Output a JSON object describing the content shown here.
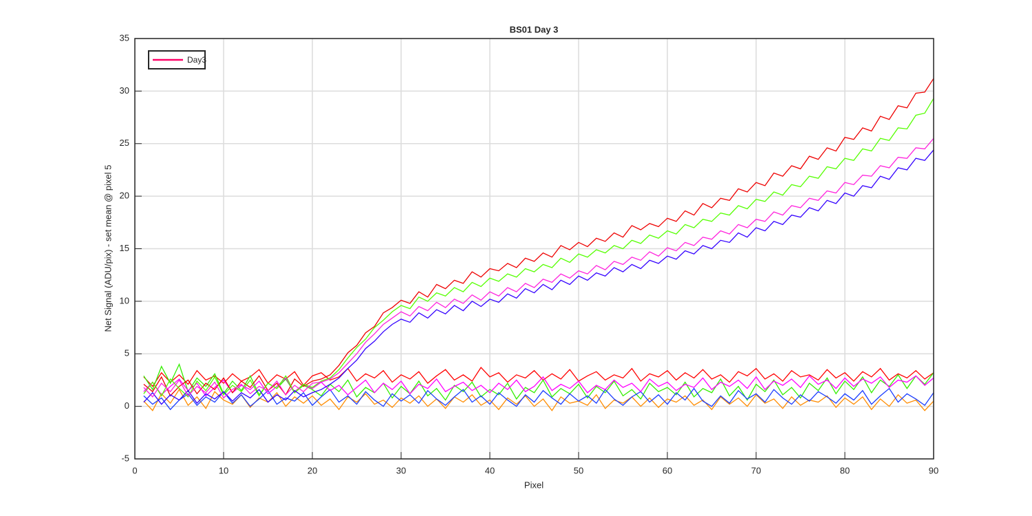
{
  "chart_data": {
    "type": "line",
    "title": "BS01 Day 3",
    "x_label": "Pixel",
    "y_label": "Net Signal (ADU/pix) - set mean @ pixel 5",
    "x": [
      1,
      2,
      3,
      4,
      5,
      6,
      7,
      8,
      9,
      10,
      11,
      12,
      13,
      14,
      15,
      16,
      17,
      18,
      19,
      20,
      21,
      22,
      23,
      24,
      25,
      26,
      27,
      28,
      29,
      30,
      31,
      32,
      33,
      34,
      35,
      36,
      37,
      38,
      39,
      40,
      41,
      42,
      43,
      44,
      45,
      46,
      47,
      48,
      49,
      50,
      51,
      52,
      53,
      54,
      55,
      56,
      57,
      58,
      59,
      60,
      61,
      62,
      63,
      64,
      65,
      66,
      67,
      68,
      69,
      70,
      71,
      72,
      73,
      74,
      75,
      76,
      77,
      78,
      79,
      80,
      81,
      82,
      83,
      84,
      85,
      86,
      87,
      88,
      89,
      90
    ],
    "xlim": [
      0,
      90
    ],
    "xticks": [
      0,
      10,
      20,
      30,
      40,
      50,
      60,
      70,
      80,
      90
    ],
    "ylim": [
      -5,
      35
    ],
    "yticks": [
      -5,
      0,
      5,
      10,
      15,
      20,
      25,
      30,
      35
    ],
    "grid": true,
    "legend": {
      "label": "Day3",
      "color": "#ff0066",
      "location": "northwest"
    },
    "series": [
      {
        "color": "#ff0000",
        "values": [
          2.8,
          1.9,
          3.2,
          2.3,
          3.0,
          2.1,
          3.4,
          2.5,
          2.9,
          2.2,
          3.1,
          2.4,
          2.8,
          3.5,
          2.2,
          3.0,
          2.6,
          3.3,
          2.0,
          2.9,
          3.2,
          2.5,
          2.8,
          3.6,
          2.4,
          3.1,
          2.7,
          3.4,
          2.3,
          3.0,
          2.6,
          3.3,
          2.2,
          2.9,
          3.5,
          2.5,
          3.0,
          2.4,
          3.7,
          2.8,
          3.2,
          2.3,
          3.0,
          2.7,
          3.4,
          2.5,
          3.1,
          2.6,
          3.5,
          2.4,
          2.9,
          3.3,
          2.5,
          3.0,
          2.7,
          3.6,
          2.4,
          3.1,
          2.8,
          3.4,
          2.5,
          3.2,
          2.7,
          3.5,
          2.6,
          3.0,
          2.3,
          3.3,
          2.9,
          3.6,
          2.6,
          3.1,
          2.4,
          3.4,
          2.8,
          3.0,
          2.5,
          3.5,
          2.7,
          3.2,
          2.4,
          3.3,
          2.8,
          3.6,
          2.5,
          3.1,
          2.7,
          3.4,
          2.6,
          3.2
        ]
      },
      {
        "color": "#ff8c00",
        "values": [
          0.5,
          -0.4,
          1.2,
          0.3,
          1.6,
          0.1,
          0.9,
          -0.2,
          1.4,
          0.6,
          0.2,
          1.1,
          -0.1,
          0.8,
          0.4,
          1.3,
          0.0,
          0.9,
          0.3,
          1.0,
          0.1,
          0.7,
          -0.3,
          0.9,
          0.4,
          1.2,
          0.2,
          0.6,
          -0.1,
          0.8,
          0.3,
          1.0,
          0.0,
          0.7,
          -0.2,
          0.9,
          0.4,
          1.1,
          0.1,
          0.6,
          -0.3,
          0.8,
          0.2,
          1.0,
          0.0,
          0.7,
          -0.4,
          0.9,
          0.3,
          0.5,
          0.1,
          1.1,
          -0.2,
          0.6,
          0.3,
          0.9,
          0.0,
          0.8,
          -0.1,
          0.7,
          0.4,
          1.0,
          0.1,
          0.6,
          -0.3,
          0.9,
          0.2,
          0.8,
          0.0,
          1.1,
          0.3,
          0.7,
          -0.2,
          0.9,
          0.1,
          0.6,
          0.4,
          1.0,
          -0.1,
          0.8,
          0.2,
          0.9,
          -0.3,
          0.7,
          0.0,
          1.1,
          0.3,
          0.6,
          -0.4,
          0.5
        ]
      },
      {
        "color": "#33ee00",
        "values": [
          2.9,
          1.6,
          3.8,
          2.2,
          4.0,
          1.4,
          2.7,
          1.9,
          3.1,
          1.2,
          2.4,
          1.5,
          2.9,
          1.1,
          2.2,
          1.7,
          2.6,
          1.3,
          2.0,
          1.6,
          1.0,
          2.1,
          1.4,
          2.5,
          0.9,
          1.8,
          1.3,
          2.2,
          0.8,
          1.9,
          1.2,
          2.4,
          1.0,
          1.7,
          0.6,
          2.0,
          1.4,
          2.3,
          0.9,
          1.6,
          1.1,
          2.2,
          0.7,
          1.8,
          1.3,
          2.5,
          0.9,
          1.7,
          1.2,
          2.1,
          0.8,
          1.9,
          1.3,
          2.4,
          1.0,
          1.6,
          0.7,
          2.2,
          1.4,
          1.8,
          1.1,
          2.3,
          0.9,
          1.7,
          1.3,
          2.6,
          1.0,
          1.9,
          0.6,
          2.1,
          1.4,
          2.5,
          1.1,
          1.8,
          0.8,
          2.2,
          1.5,
          2.7,
          1.2,
          2.4,
          1.6,
          2.8,
          1.3,
          2.5,
          1.9,
          3.0,
          1.7,
          2.9,
          2.1,
          3.2
        ]
      },
      {
        "color": "#1a3cff",
        "values": [
          1.0,
          0.2,
          0.8,
          -0.3,
          0.6,
          1.2,
          0.1,
          0.9,
          0.4,
          1.4,
          0.3,
          1.1,
          0.0,
          0.7,
          1.5,
          0.2,
          0.8,
          0.5,
          1.3,
          0.1,
          0.9,
          1.6,
          0.4,
          1.0,
          0.2,
          1.4,
          0.6,
          0.0,
          1.2,
          0.5,
          1.1,
          0.3,
          1.5,
          0.7,
          0.1,
          0.9,
          1.6,
          0.4,
          1.0,
          0.2,
          1.3,
          0.6,
          0.0,
          1.1,
          0.4,
          1.5,
          0.8,
          0.2,
          1.2,
          0.5,
          1.0,
          0.3,
          1.6,
          0.7,
          0.1,
          0.9,
          1.4,
          0.4,
          1.1,
          0.2,
          1.3,
          0.6,
          1.7,
          0.5,
          0.0,
          1.0,
          0.3,
          1.5,
          0.7,
          1.2,
          0.4,
          1.6,
          0.8,
          0.2,
          1.1,
          0.5,
          1.4,
          0.9,
          0.3,
          1.2,
          0.6,
          1.5,
          0.2,
          1.0,
          1.7,
          0.4,
          1.2,
          0.7,
          0.1,
          1.3
        ]
      },
      {
        "color": "#ff00ff",
        "values": [
          1.4,
          2.3,
          1.1,
          1.9,
          2.6,
          1.5,
          2.2,
          1.0,
          1.8,
          2.5,
          1.3,
          2.0,
          1.6,
          2.4,
          1.2,
          1.9,
          2.7,
          1.4,
          2.1,
          1.7,
          2.3,
          1.5,
          2.0,
          1.1,
          1.8,
          2.5,
          1.3,
          2.2,
          1.6,
          2.4,
          1.2,
          2.1,
          1.7,
          2.6,
          1.4,
          1.9,
          2.3,
          1.5,
          2.0,
          1.3,
          2.2,
          1.6,
          2.5,
          1.4,
          1.9,
          2.8,
          1.5,
          2.1,
          1.7,
          2.4,
          1.3,
          2.0,
          1.6,
          2.5,
          1.8,
          2.2,
          1.4,
          2.6,
          1.9,
          2.3,
          1.5,
          2.1,
          1.8,
          2.7,
          1.6,
          2.3,
          1.9,
          2.5,
          1.7,
          2.8,
          1.6,
          2.4,
          2.0,
          2.6,
          1.8,
          2.9,
          2.1,
          2.5,
          1.7,
          2.7,
          1.9,
          2.6,
          2.2,
          2.8,
          1.8,
          2.5,
          2.3,
          2.9,
          2.0,
          2.7
        ]
      },
      {
        "color": "#ee0000",
        "values": [
          2.1,
          1.4,
          2.8,
          1.0,
          1.9,
          2.5,
          1.2,
          2.2,
          1.6,
          2.7,
          1.3,
          2.4,
          1.8,
          2.9,
          1.5,
          2.2,
          1.1,
          2.6,
          1.9,
          2.4,
          2.6,
          3.0,
          3.9,
          5.1,
          5.8,
          7.0,
          7.6,
          8.9,
          9.4,
          10.1,
          9.8,
          10.9,
          10.4,
          11.6,
          11.2,
          12.0,
          11.7,
          12.8,
          12.3,
          13.1,
          12.9,
          13.6,
          13.2,
          14.1,
          13.8,
          14.6,
          14.2,
          15.3,
          14.9,
          15.6,
          15.2,
          16.0,
          15.7,
          16.5,
          16.1,
          17.2,
          16.8,
          17.4,
          17.1,
          17.9,
          17.6,
          18.6,
          18.2,
          19.3,
          18.9,
          19.8,
          19.6,
          20.7,
          20.4,
          21.3,
          21.0,
          22.2,
          21.9,
          22.9,
          22.6,
          23.8,
          23.5,
          24.6,
          24.3,
          25.6,
          25.4,
          26.5,
          26.2,
          27.6,
          27.3,
          28.6,
          28.4,
          29.8,
          29.9,
          31.2
        ]
      },
      {
        "color": "#55ff00",
        "values": [
          1.2,
          2.3,
          1.0,
          2.6,
          1.7,
          0.9,
          2.4,
          1.5,
          2.8,
          1.1,
          2.0,
          1.4,
          2.5,
          1.0,
          2.2,
          1.7,
          2.9,
          1.3,
          2.1,
          1.8,
          2.4,
          2.7,
          3.5,
          4.6,
          5.6,
          6.4,
          7.5,
          8.2,
          9.0,
          9.6,
          9.3,
          10.4,
          10.0,
          10.8,
          10.5,
          11.3,
          10.9,
          11.8,
          11.4,
          12.2,
          11.9,
          12.6,
          12.3,
          13.1,
          12.8,
          13.5,
          13.2,
          14.1,
          13.7,
          14.5,
          14.2,
          14.9,
          14.6,
          15.3,
          15.0,
          15.8,
          15.5,
          16.3,
          16.0,
          16.7,
          16.4,
          17.3,
          17.0,
          17.8,
          17.6,
          18.4,
          18.2,
          19.1,
          18.8,
          19.7,
          19.5,
          20.4,
          20.1,
          21.1,
          20.9,
          21.9,
          21.7,
          22.8,
          22.6,
          23.6,
          23.4,
          24.5,
          24.3,
          25.5,
          25.3,
          26.5,
          26.4,
          27.7,
          27.9,
          29.3
        ]
      },
      {
        "color": "#3300ff",
        "values": [
          0.4,
          1.3,
          0.2,
          1.1,
          0.6,
          1.5,
          0.3,
          1.2,
          0.7,
          1.4,
          0.5,
          1.3,
          0.8,
          1.6,
          0.4,
          1.1,
          0.6,
          1.5,
          0.9,
          1.3,
          1.6,
          2.1,
          2.7,
          3.6,
          4.4,
          5.5,
          6.2,
          7.1,
          7.8,
          8.3,
          8.0,
          8.9,
          8.4,
          9.2,
          8.8,
          9.6,
          9.1,
          10.0,
          9.5,
          10.2,
          9.9,
          10.7,
          10.3,
          11.2,
          10.8,
          11.6,
          11.1,
          12.0,
          11.6,
          12.4,
          12.0,
          12.7,
          12.4,
          13.2,
          12.8,
          13.5,
          13.1,
          13.9,
          13.6,
          14.3,
          14.0,
          14.8,
          14.5,
          15.3,
          15.0,
          15.8,
          15.6,
          16.5,
          16.1,
          17.0,
          16.7,
          17.6,
          17.3,
          18.2,
          18.0,
          18.9,
          18.6,
          19.6,
          19.3,
          20.3,
          20.0,
          21.0,
          20.8,
          21.9,
          21.6,
          22.7,
          22.5,
          23.6,
          23.4,
          24.4
        ]
      },
      {
        "color": "#ff22dd",
        "values": [
          1.8,
          0.9,
          2.2,
          1.4,
          2.5,
          1.0,
          1.9,
          1.3,
          2.3,
          0.8,
          1.6,
          2.1,
          1.2,
          1.9,
          1.5,
          2.4,
          1.1,
          2.0,
          1.4,
          2.2,
          2.3,
          2.6,
          3.2,
          4.1,
          5.0,
          6.1,
          6.9,
          7.8,
          8.4,
          9.0,
          8.6,
          9.5,
          9.1,
          9.9,
          9.4,
          10.2,
          9.8,
          10.6,
          10.1,
          10.9,
          10.5,
          11.3,
          10.9,
          11.7,
          11.3,
          12.1,
          11.8,
          12.6,
          12.2,
          12.9,
          12.6,
          13.4,
          13.0,
          13.8,
          13.5,
          14.2,
          13.9,
          14.7,
          14.3,
          15.1,
          14.8,
          15.6,
          15.3,
          16.1,
          15.9,
          16.7,
          16.4,
          17.3,
          17.0,
          17.8,
          17.6,
          18.5,
          18.2,
          19.1,
          18.9,
          19.8,
          19.6,
          20.5,
          20.3,
          21.3,
          21.1,
          22.0,
          21.9,
          22.9,
          22.7,
          23.7,
          23.6,
          24.6,
          24.5,
          25.5
        ]
      }
    ]
  }
}
